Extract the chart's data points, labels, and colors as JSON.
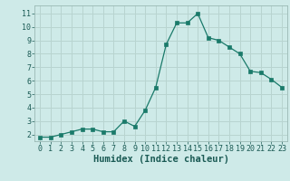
{
  "xlabel": "Humidex (Indice chaleur)",
  "ylabel": "",
  "x": [
    0,
    1,
    2,
    3,
    4,
    5,
    6,
    7,
    8,
    9,
    10,
    11,
    12,
    13,
    14,
    15,
    16,
    17,
    18,
    19,
    20,
    21,
    22,
    23
  ],
  "y": [
    1.8,
    1.8,
    2.0,
    2.2,
    2.4,
    2.4,
    2.2,
    2.2,
    3.0,
    2.6,
    3.8,
    5.5,
    8.7,
    10.3,
    10.3,
    11.0,
    9.2,
    9.0,
    8.5,
    8.0,
    6.7,
    6.6,
    6.1,
    5.5
  ],
  "line_color": "#1a7a6a",
  "marker": "s",
  "marker_size": 2.5,
  "bg_color": "#ceeae8",
  "grid_color": "#b8d4d0",
  "ylim": [
    1.5,
    11.6
  ],
  "xlim": [
    -0.5,
    23.5
  ],
  "yticks": [
    2,
    3,
    4,
    5,
    6,
    7,
    8,
    9,
    10,
    11
  ],
  "xticks": [
    0,
    1,
    2,
    3,
    4,
    5,
    6,
    7,
    8,
    9,
    10,
    11,
    12,
    13,
    14,
    15,
    16,
    17,
    18,
    19,
    20,
    21,
    22,
    23
  ],
  "tick_fontsize": 6,
  "xlabel_fontsize": 7.5
}
